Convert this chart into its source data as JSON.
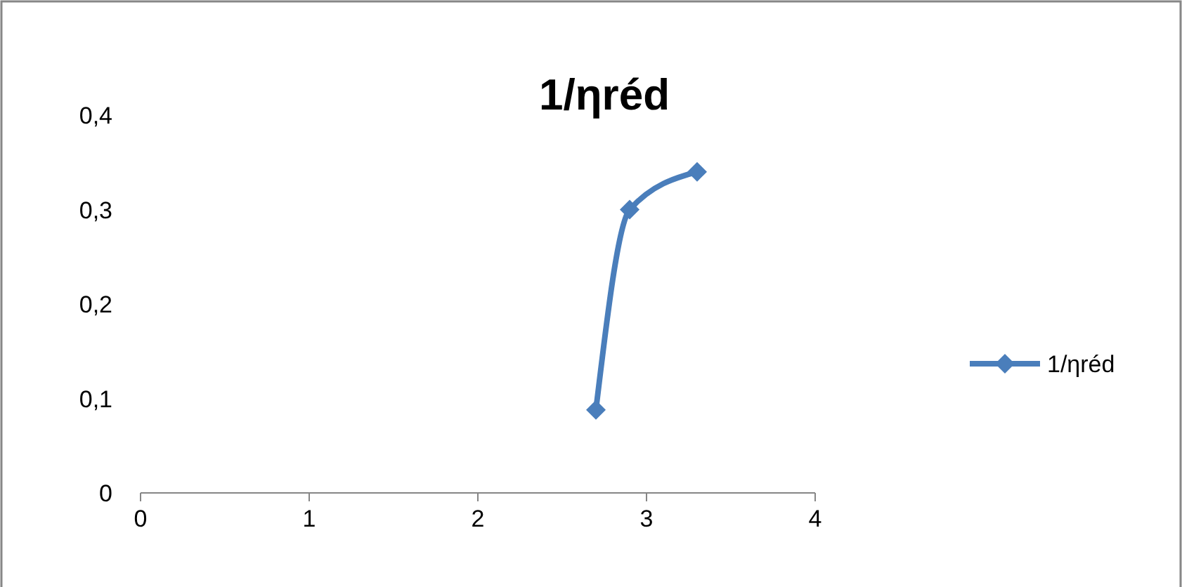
{
  "chart_data": {
    "type": "line",
    "title": "1/ηréd",
    "series": [
      {
        "name": "1/ηréd",
        "color": "#4a7ebb",
        "x": [
          2.7,
          2.9,
          3.3
        ],
        "values": [
          0.088,
          0.3,
          0.34
        ]
      }
    ],
    "xlim": [
      0,
      4
    ],
    "xticks": [
      {
        "value": 0,
        "label": "0"
      },
      1,
      2,
      3,
      4
    ],
    "ylim": [
      0,
      0.4
    ],
    "yticks": [
      {
        "value": 0,
        "label": "0"
      },
      {
        "value": 0.1,
        "label": "0,1"
      },
      {
        "value": 0.2,
        "label": "0,2"
      },
      {
        "value": 0.3,
        "label": "0,3"
      },
      {
        "value": 0.4,
        "label": "0,4"
      }
    ],
    "grid": false,
    "legend": "right",
    "marker": "diamond",
    "line_style": "solid"
  }
}
